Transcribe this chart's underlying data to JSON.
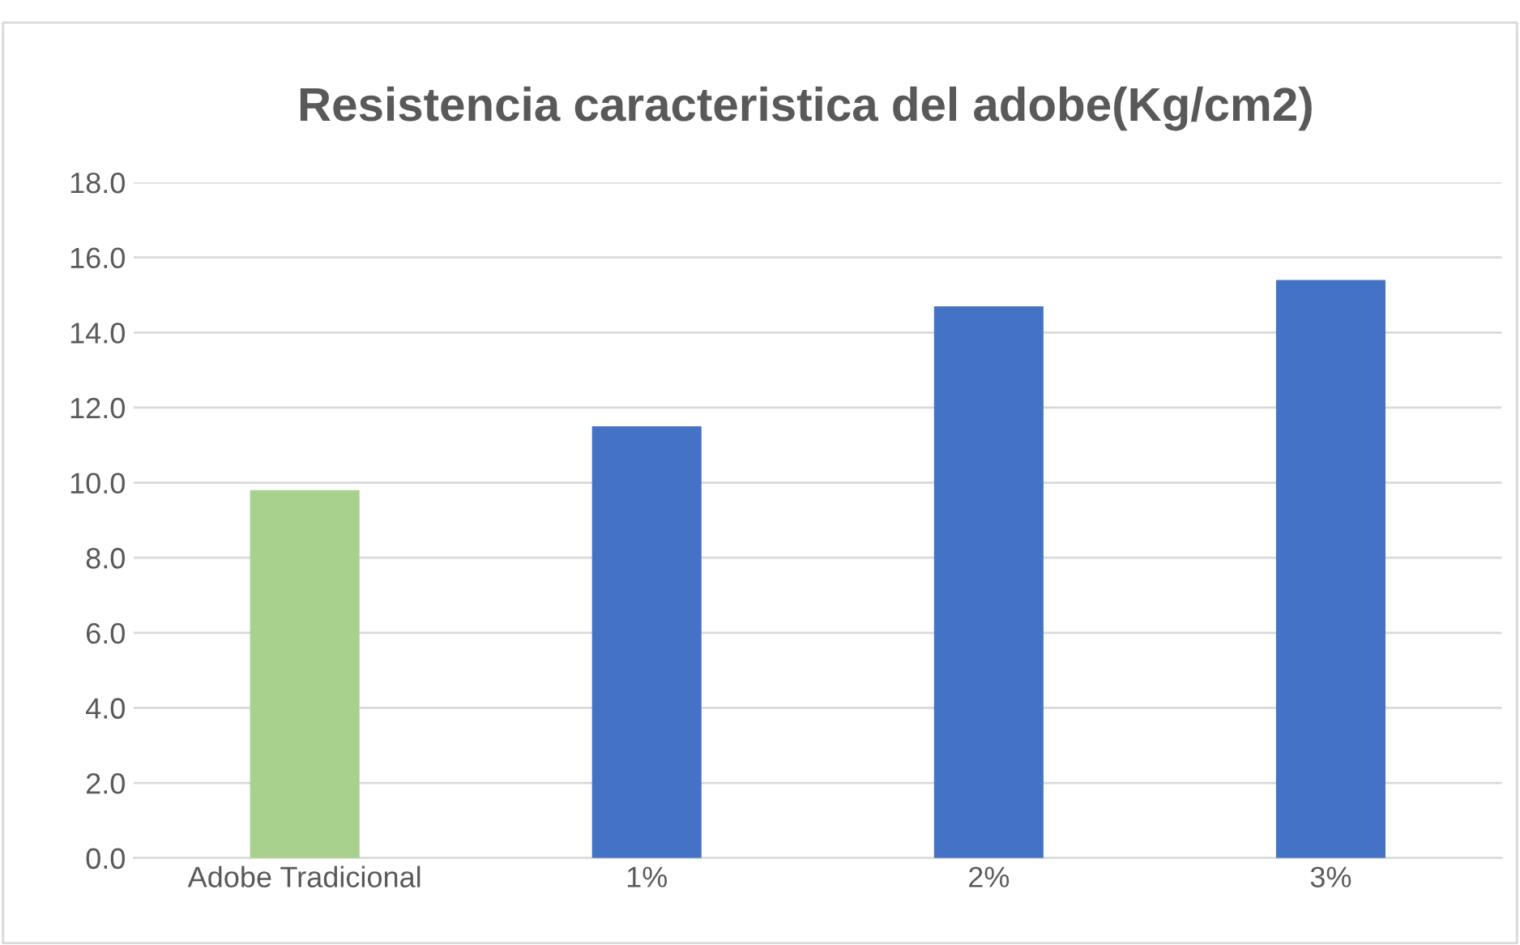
{
  "chart_data": {
    "type": "bar",
    "title": "Resistencia caracteristica del adobe(Kg/cm2)",
    "categories": [
      "Adobe Tradicional",
      "1%",
      "2%",
      "3%"
    ],
    "values": [
      9.8,
      11.5,
      14.7,
      15.4
    ],
    "colors": [
      "#a9d18e",
      "#4472c4",
      "#4472c4",
      "#4472c4"
    ],
    "ylim": [
      0,
      18
    ],
    "yticks": [
      {
        "value": 0,
        "label": "0.0"
      },
      {
        "value": 2,
        "label": "2.0"
      },
      {
        "value": 4,
        "label": "4.0"
      },
      {
        "value": 6,
        "label": "6.0"
      },
      {
        "value": 8,
        "label": "8.0"
      },
      {
        "value": 10,
        "label": "10.0"
      },
      {
        "value": 12,
        "label": "12.0"
      },
      {
        "value": 14,
        "label": "14.0"
      },
      {
        "value": 16,
        "label": "16.0"
      },
      {
        "value": 18,
        "label": "18.0"
      }
    ],
    "grid": "y"
  }
}
